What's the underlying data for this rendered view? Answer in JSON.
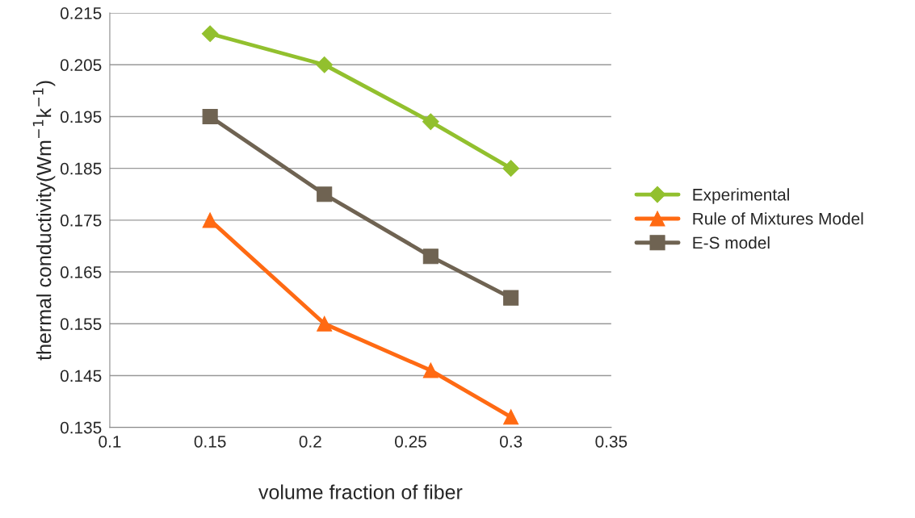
{
  "chart_data": {
    "type": "line",
    "xlabel": "volume fraction of fiber",
    "ylabel": "thermal conductivity(Wm$^{−1}$k$^{−1}$)",
    "x": [
      0.15,
      0.207,
      0.26,
      0.3
    ],
    "series": [
      {
        "name": "Experimental",
        "color": "#92c02e",
        "marker": "diamond",
        "values": [
          0.211,
          0.205,
          0.194,
          0.185
        ]
      },
      {
        "name": "Rule of Mixtures Model",
        "color": "#ff6a13",
        "marker": "triangle",
        "values": [
          0.175,
          0.155,
          0.146,
          0.137
        ]
      },
      {
        "name": "E-S model",
        "color": "#6f6352",
        "marker": "square",
        "values": [
          0.195,
          0.18,
          0.168,
          0.16
        ]
      }
    ],
    "xlim": [
      0.1,
      0.35
    ],
    "xticks": [
      0.1,
      0.15,
      0.2,
      0.25,
      0.3,
      0.35
    ],
    "ylim": [
      0.135,
      0.215
    ],
    "yticks": [
      0.135,
      0.145,
      0.155,
      0.165,
      0.175,
      0.185,
      0.195,
      0.205,
      0.215
    ],
    "grid": "y",
    "legend": "right",
    "line_style": "solid"
  }
}
